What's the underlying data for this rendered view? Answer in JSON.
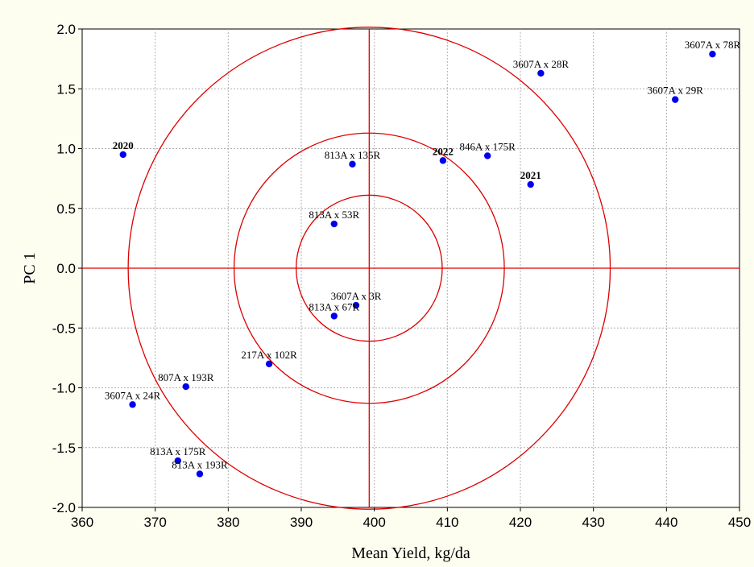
{
  "chart_data": {
    "type": "scatter",
    "xlabel": "Mean Yield, kg/da",
    "ylabel": "PC 1",
    "xlim": [
      360,
      450
    ],
    "ylim": [
      -2.0,
      2.0
    ],
    "x_ticks": [
      "360",
      "370",
      "380",
      "390",
      "400",
      "410",
      "420",
      "430",
      "440",
      "450"
    ],
    "y_ticks": [
      "2.0",
      "1.5",
      "1.0",
      "0.5",
      "0.0",
      "-0.5",
      "-1.0",
      "-1.5",
      "-2.0"
    ],
    "grid": true,
    "reference_lines": {
      "x": 399.3,
      "y": 0.0
    },
    "circles": {
      "center": [
        399.3,
        0.0
      ],
      "radius_x": [
        10.0,
        18.5,
        33.0
      ]
    },
    "point_color": "#0000ee",
    "line_color": "#dd0000",
    "points": [
      {
        "label": "3607A x 78R",
        "x": 446.3,
        "y": 1.79,
        "bold": false
      },
      {
        "label": "3607A x 28R",
        "x": 422.8,
        "y": 1.63,
        "bold": false
      },
      {
        "label": "3607A x 29R",
        "x": 441.2,
        "y": 1.41,
        "bold": false
      },
      {
        "label": "2020",
        "x": 365.6,
        "y": 0.95,
        "bold": true
      },
      {
        "label": "813A x 135R",
        "x": 397.0,
        "y": 0.87,
        "bold": false
      },
      {
        "label": "2022",
        "x": 409.4,
        "y": 0.9,
        "bold": true
      },
      {
        "label": "846A x 175R",
        "x": 415.5,
        "y": 0.94,
        "bold": false
      },
      {
        "label": "2021",
        "x": 421.4,
        "y": 0.7,
        "bold": true
      },
      {
        "label": "813A x 53R",
        "x": 394.5,
        "y": 0.37,
        "bold": false
      },
      {
        "label": "3607A x 3R",
        "x": 397.5,
        "y": -0.31,
        "bold": false
      },
      {
        "label": "813A x 67R",
        "x": 394.5,
        "y": -0.4,
        "bold": false
      },
      {
        "label": "217A x 102R",
        "x": 385.6,
        "y": -0.8,
        "bold": false
      },
      {
        "label": "807A x 193R",
        "x": 374.2,
        "y": -0.99,
        "bold": false
      },
      {
        "label": "3607A x 24R",
        "x": 366.9,
        "y": -1.14,
        "bold": false
      },
      {
        "label": "813A x 175R",
        "x": 373.1,
        "y": -1.61,
        "bold": false
      },
      {
        "label": "813A x 193R",
        "x": 376.1,
        "y": -1.72,
        "bold": false
      }
    ]
  }
}
